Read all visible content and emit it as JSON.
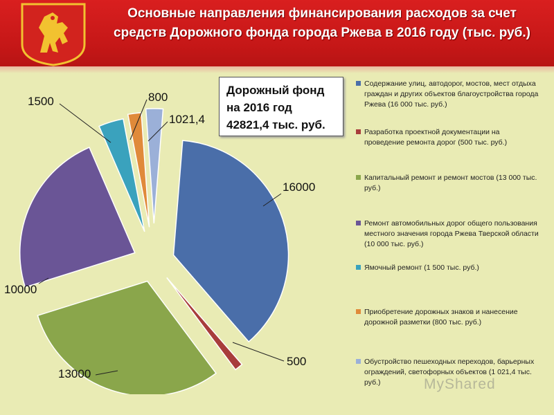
{
  "header": {
    "title_line1": "Основные направления финансирования расходов за счет",
    "title_line2": "средств Дорожного фонда  города Ржева в 2016 году (тыс. руб.)"
  },
  "fund_box": {
    "line1": "Дорожный фонд",
    "line2": "на 2016 год",
    "line3": "42821,4 тыс. руб."
  },
  "watermark": "MyShared",
  "chart_data": {
    "type": "pie",
    "title": "",
    "total_label": "42821,4 тыс. руб.",
    "series": [
      {
        "label": "16000",
        "value": 16000,
        "color": "#4a6ea9",
        "legend": "Содержание улиц, автодорог, мостов, мест отдыха граждан и других объектов благоустройства города Ржева (16 000 тыс. руб.)"
      },
      {
        "label": "500",
        "value": 500,
        "color": "#a83d3b",
        "legend": "Разработка проектной документации  на проведение ремонта дорог (500 тыс. руб.)"
      },
      {
        "label": "13000",
        "value": 13000,
        "color": "#8aa64b",
        "legend": "Капитальный ремонт и ремонт мостов (13 000 тыс. руб.)"
      },
      {
        "label": "10000",
        "value": 10000,
        "color": "#6a5596",
        "legend": "Ремонт автомобильных дорог общего пользования местного значения города Ржева Тверской области (10 000 тыс. руб.)"
      },
      {
        "label": "1500",
        "value": 1500,
        "color": "#3aa2bd",
        "legend": "Ямочный ремонт (1 500 тыс. руб.)"
      },
      {
        "label": "800",
        "value": 800,
        "color": "#e08a3a",
        "legend": " Приобретение дорожных знаков и нанесение дорожной разметки (800 тыс. руб.)"
      },
      {
        "label": "1021,4",
        "value": 1021.4,
        "color": "#9bb0d8",
        "legend": "Обустройство пешеходных переходов, барьерных ограждений, светофорных объектов (1 021,4 тыс. руб.)"
      }
    ],
    "legend_position": "right"
  }
}
